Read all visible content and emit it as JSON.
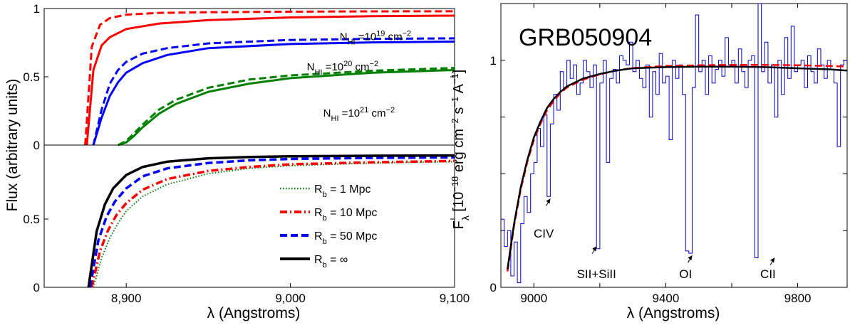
{
  "chart_data": [
    {
      "type": "line",
      "panel": "left-top",
      "xlim": [
        8850,
        9100
      ],
      "ylim": [
        0,
        1
      ],
      "yticks": [
        0,
        0.5,
        1
      ],
      "ytick_labels": [
        "0",
        "0.5",
        "1"
      ],
      "series": [
        {
          "name": "N_HI=10^19 cm^-2",
          "color": "#ff0000",
          "style": "solid",
          "x": [
            8876,
            8880,
            8885,
            8890,
            8900,
            8920,
            8950,
            9000,
            9050,
            9100
          ],
          "y": [
            0.0,
            0.55,
            0.73,
            0.79,
            0.85,
            0.89,
            0.915,
            0.935,
            0.944,
            0.948
          ]
        },
        {
          "name": "N_HI=10^19 cm^-2",
          "color": "#ff0000",
          "style": "dashed",
          "x": [
            8875,
            8879,
            8884,
            8890,
            8900,
            8920,
            8950,
            9000,
            9050,
            9100
          ],
          "y": [
            0.0,
            0.72,
            0.88,
            0.93,
            0.955,
            0.968,
            0.973,
            0.977,
            0.979,
            0.98
          ]
        },
        {
          "name": "N_HI=10^20 cm^-2",
          "color": "#0000ff",
          "style": "solid",
          "x": [
            8880,
            8885,
            8890,
            8895,
            8900,
            8910,
            8925,
            8950,
            9000,
            9050,
            9100
          ],
          "y": [
            0.0,
            0.2,
            0.36,
            0.46,
            0.53,
            0.6,
            0.66,
            0.71,
            0.74,
            0.752,
            0.758
          ]
        },
        {
          "name": "N_HI=10^20 cm^-2",
          "color": "#0000ff",
          "style": "dashed",
          "x": [
            8880,
            8885,
            8890,
            8895,
            8900,
            8910,
            8925,
            8950,
            9000,
            9050,
            9100
          ],
          "y": [
            0.0,
            0.26,
            0.45,
            0.55,
            0.61,
            0.67,
            0.71,
            0.745,
            0.77,
            0.778,
            0.782
          ]
        },
        {
          "name": "N_HI=10^21 cm^-2",
          "color": "#008000",
          "style": "solid",
          "x": [
            8895,
            8900,
            8905,
            8910,
            8920,
            8930,
            8950,
            8975,
            9000,
            9050,
            9100
          ],
          "y": [
            0.0,
            0.02,
            0.07,
            0.13,
            0.23,
            0.3,
            0.39,
            0.45,
            0.49,
            0.53,
            0.55
          ]
        },
        {
          "name": "N_HI=10^21 cm^-2",
          "color": "#008000",
          "style": "dashed",
          "x": [
            8895,
            8900,
            8905,
            8910,
            8920,
            8930,
            8950,
            8975,
            9000,
            9050,
            9100
          ],
          "y": [
            0.0,
            0.03,
            0.09,
            0.15,
            0.26,
            0.33,
            0.42,
            0.48,
            0.51,
            0.545,
            0.565
          ]
        }
      ],
      "annotations": [
        {
          "base": "N",
          "sub": "HI",
          "mid": " =10",
          "sup": "19",
          "unit": " cm",
          "unit_sup": "−2",
          "x": 9030,
          "y": 0.83
        },
        {
          "base": "N",
          "sub": "HI",
          "mid": " =10",
          "sup": "20",
          "unit": " cm",
          "unit_sup": "−2",
          "x": 9010,
          "y": 0.61
        },
        {
          "base": "N",
          "sub": "HI",
          "mid": " =10",
          "sup": "21",
          "unit": " cm",
          "unit_sup": "−2",
          "x": 9020,
          "y": 0.27
        }
      ]
    },
    {
      "type": "line",
      "panel": "left-bottom",
      "xlim": [
        8850,
        9100
      ],
      "ylim": [
        0,
        1
      ],
      "yticks": [
        0,
        0.5
      ],
      "ytick_labels": [
        "0",
        "0.5"
      ],
      "xticks": [
        8900,
        9000,
        9100
      ],
      "xtick_labels": [
        "8,900",
        "9,000",
        "9,100"
      ],
      "xlabel": "λ (Angstroms)",
      "ylabel": "Flux (arbitrary units)",
      "legend": "lower-right",
      "legend_items": [
        {
          "base": "R",
          "sub": "b",
          "rest": " = 1 Mpc",
          "color": "#008000",
          "style": "dotted"
        },
        {
          "base": "R",
          "sub": "b",
          "rest": " = 10 Mpc",
          "color": "#ff0000",
          "style": "dashdot"
        },
        {
          "base": "R",
          "sub": "b",
          "rest": " = 50 Mpc",
          "color": "#0000ff",
          "style": "dashed"
        },
        {
          "base": "R",
          "sub": "b",
          "rest": " = ∞",
          "color": "#000000",
          "style": "solid"
        }
      ],
      "series": [
        {
          "style": "dotted",
          "color": "#008000",
          "x": [
            8880,
            8885,
            8890,
            8895,
            8900,
            8910,
            8925,
            8950,
            8975,
            9000,
            9050,
            9100
          ],
          "y": [
            0.0,
            0.22,
            0.37,
            0.48,
            0.57,
            0.68,
            0.77,
            0.85,
            0.89,
            0.91,
            0.93,
            0.94
          ]
        },
        {
          "style": "dashdot",
          "color": "#ff0000",
          "x": [
            8879,
            8884,
            8889,
            8894,
            8900,
            8910,
            8925,
            8950,
            8975,
            9000,
            9050,
            9100
          ],
          "y": [
            0.0,
            0.27,
            0.43,
            0.54,
            0.63,
            0.73,
            0.81,
            0.87,
            0.9,
            0.92,
            0.935,
            0.945
          ]
        },
        {
          "style": "dashed",
          "color": "#0000ff",
          "x": [
            8878,
            8883,
            8888,
            8893,
            8900,
            8910,
            8925,
            8950,
            8975,
            9000,
            9050,
            9100
          ],
          "y": [
            0.0,
            0.35,
            0.53,
            0.64,
            0.74,
            0.83,
            0.89,
            0.93,
            0.95,
            0.96,
            0.968,
            0.972
          ]
        },
        {
          "style": "solid",
          "color": "#000000",
          "x": [
            8877,
            8882,
            8887,
            8892,
            8900,
            8910,
            8925,
            8950,
            8975,
            9000,
            9050,
            9100
          ],
          "y": [
            0.0,
            0.42,
            0.62,
            0.74,
            0.84,
            0.9,
            0.94,
            0.965,
            0.975,
            0.98,
            0.984,
            0.986
          ]
        }
      ]
    },
    {
      "type": "line",
      "panel": "right",
      "title": "GRB050904",
      "xlim": [
        8900,
        9950
      ],
      "ylim": [
        0,
        1.25
      ],
      "xticks": [
        9000,
        9400,
        9800
      ],
      "xtick_labels": [
        "9000",
        "9400",
        "9800"
      ],
      "yticks": [
        0,
        1
      ],
      "ytick_labels": [
        "0",
        "1"
      ],
      "xlabel": "λ (Angstroms)",
      "ylabel_parts": {
        "base": "F",
        "sub": "λ",
        "pre": " [10",
        "exp1": "−18",
        "mid1": " erg cm",
        "exp2": "−2",
        "mid2": " s",
        "exp3": "−1",
        "mid3": " A",
        "exp4": "−1",
        "end": "]"
      },
      "observed": {
        "name": "observed spectrum",
        "color": "#0000cc",
        "x": [
          8900,
          8910,
          8920,
          8930,
          8940,
          8950,
          8960,
          8970,
          8980,
          8990,
          9000,
          9010,
          9020,
          9030,
          9040,
          9050,
          9060,
          9070,
          9080,
          9090,
          9100,
          9110,
          9120,
          9130,
          9140,
          9150,
          9160,
          9170,
          9180,
          9190,
          9200,
          9210,
          9220,
          9230,
          9240,
          9250,
          9260,
          9270,
          9280,
          9290,
          9300,
          9310,
          9320,
          9330,
          9340,
          9350,
          9360,
          9370,
          9380,
          9390,
          9400,
          9410,
          9420,
          9430,
          9440,
          9450,
          9460,
          9470,
          9480,
          9490,
          9500,
          9510,
          9520,
          9530,
          9540,
          9550,
          9560,
          9570,
          9580,
          9590,
          9600,
          9610,
          9620,
          9630,
          9640,
          9650,
          9660,
          9670,
          9680,
          9690,
          9700,
          9710,
          9720,
          9730,
          9740,
          9750,
          9760,
          9770,
          9780,
          9790,
          9800,
          9810,
          9820,
          9830,
          9840,
          9850,
          9860,
          9870,
          9880,
          9890,
          9900,
          9910,
          9920,
          9930,
          9940
        ],
        "y": [
          0.3,
          0.18,
          0.25,
          0.05,
          0.2,
          0.02,
          0.28,
          0.4,
          0.33,
          0.5,
          0.55,
          0.7,
          0.62,
          0.76,
          0.4,
          0.72,
          0.85,
          0.78,
          0.95,
          0.88,
          1.0,
          0.92,
          0.98,
          0.85,
          0.9,
          1.0,
          0.95,
          0.88,
          0.98,
          0.17,
          0.9,
          1.0,
          0.55,
          0.92,
          0.96,
          0.9,
          1.02,
          1.0,
          0.98,
          1.08,
          0.95,
          1.0,
          0.92,
          0.88,
          0.98,
          0.75,
          0.95,
          0.85,
          1.03,
          0.9,
          0.93,
          0.65,
          1.0,
          0.92,
          0.98,
          0.85,
          0.16,
          0.15,
          0.88,
          1.2,
          0.95,
          1.0,
          0.85,
          1.02,
          0.9,
          0.96,
          1.0,
          0.93,
          1.1,
          0.98,
          1.0,
          0.9,
          1.05,
          0.95,
          0.88,
          1.0,
          1.02,
          0.13,
          1.25,
          0.95,
          1.08,
          0.9,
          0.98,
          0.75,
          1.0,
          0.85,
          1.1,
          0.92,
          1.15,
          0.95,
          0.98,
          1.0,
          0.88,
          1.02,
          0.95,
          0.9,
          1.05,
          0.98,
          0.92,
          1.0,
          0.96,
          0.9,
          0.62,
          0.98,
          1.0
        ]
      },
      "models": [
        {
          "style": "solid",
          "color": "#000000",
          "x": [
            8920,
            8940,
            8960,
            8980,
            9000,
            9020,
            9040,
            9060,
            9080,
            9100,
            9150,
            9200,
            9250,
            9300,
            9400,
            9500,
            9600,
            9700,
            9800,
            9900,
            9950
          ],
          "y": [
            0.08,
            0.28,
            0.44,
            0.56,
            0.66,
            0.73,
            0.79,
            0.83,
            0.86,
            0.885,
            0.92,
            0.94,
            0.955,
            0.965,
            0.97,
            0.972,
            0.972,
            0.97,
            0.965,
            0.96,
            0.955
          ]
        },
        {
          "style": "dashed",
          "color": "#ff0000",
          "x": [
            8920,
            8940,
            8960,
            8980,
            9000,
            9020,
            9040,
            9060,
            9080,
            9100,
            9150,
            9200,
            9250,
            9300,
            9400,
            9500,
            9600,
            9700,
            9800,
            9900,
            9950
          ],
          "y": [
            0.07,
            0.27,
            0.43,
            0.55,
            0.65,
            0.72,
            0.78,
            0.82,
            0.855,
            0.88,
            0.915,
            0.938,
            0.955,
            0.966,
            0.975,
            0.978,
            0.98,
            0.98,
            0.978,
            0.975,
            0.972
          ]
        }
      ],
      "line_labels": [
        {
          "text": "CIV",
          "x": 9030,
          "y": 0.22,
          "ax": 9050,
          "ay": 0.39
        },
        {
          "text": "SII+SiII",
          "x": 9190,
          "y": 0.04,
          "ax": 9190,
          "ay": 0.18
        },
        {
          "text": "OI",
          "x": 9460,
          "y": 0.04,
          "ax": 9480,
          "ay": 0.14
        },
        {
          "text": "CII",
          "x": 9710,
          "y": 0.04,
          "ax": 9730,
          "ay": 0.13
        }
      ]
    }
  ]
}
